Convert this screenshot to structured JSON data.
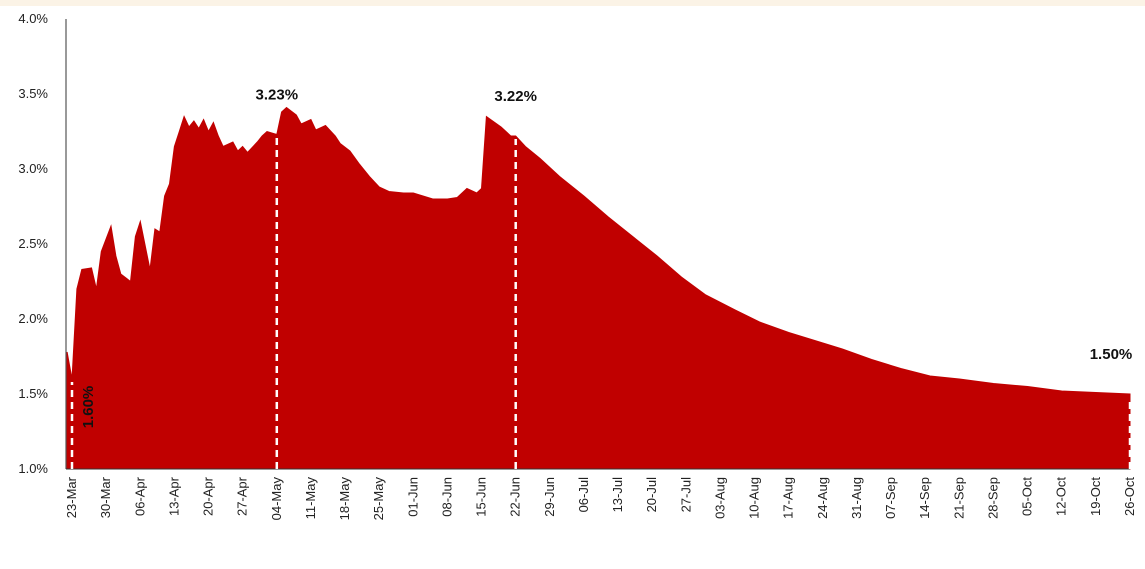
{
  "chart_data": {
    "type": "area",
    "y_tick_labels": [
      "1.0%",
      "1.5%",
      "2.0%",
      "2.5%",
      "3.0%",
      "3.5%",
      "4.0%"
    ],
    "y_ticks": [
      1.0,
      1.5,
      2.0,
      2.5,
      3.0,
      3.5,
      4.0
    ],
    "ylim": [
      1.0,
      4.0
    ],
    "x_tick_labels": [
      "23-Mar",
      "30-Mar",
      "06-Apr",
      "13-Apr",
      "20-Apr",
      "27-Apr",
      "04-May",
      "11-May",
      "18-May",
      "25-May",
      "01-Jun",
      "08-Jun",
      "15-Jun",
      "22-Jun",
      "29-Jun",
      "06-Jul",
      "13-Jul",
      "20-Jul",
      "27-Jul",
      "03-Aug",
      "10-Aug",
      "17-Aug",
      "24-Aug",
      "31-Aug",
      "07-Sep",
      "14-Sep",
      "21-Sep",
      "28-Sep",
      "05-Oct",
      "12-Oct",
      "19-Oct",
      "26-Oct"
    ],
    "x_start": "2020-03-23",
    "x_end": "2020-10-26",
    "series": [
      {
        "color": "#c00000",
        "points": [
          [
            "2020-03-22",
            1.78
          ],
          [
            "2020-03-23",
            1.6
          ],
          [
            "2020-03-24",
            2.2
          ],
          [
            "2020-03-25",
            2.33
          ],
          [
            "2020-03-27",
            2.34
          ],
          [
            "2020-03-28",
            2.2
          ],
          [
            "2020-03-29",
            2.45
          ],
          [
            "2020-03-31",
            2.62
          ],
          [
            "2020-04-01",
            2.42
          ],
          [
            "2020-04-02",
            2.3
          ],
          [
            "2020-04-04",
            2.25
          ],
          [
            "2020-04-05",
            2.55
          ],
          [
            "2020-04-06",
            2.65
          ],
          [
            "2020-04-08",
            2.33
          ],
          [
            "2020-04-09",
            2.6
          ],
          [
            "2020-04-10",
            2.58
          ],
          [
            "2020-04-11",
            2.82
          ],
          [
            "2020-04-12",
            2.9
          ],
          [
            "2020-04-13",
            3.15
          ],
          [
            "2020-04-14",
            3.25
          ],
          [
            "2020-04-15",
            3.35
          ],
          [
            "2020-04-16",
            3.28
          ],
          [
            "2020-04-17",
            3.32
          ],
          [
            "2020-04-18",
            3.27
          ],
          [
            "2020-04-19",
            3.33
          ],
          [
            "2020-04-20",
            3.25
          ],
          [
            "2020-04-21",
            3.31
          ],
          [
            "2020-04-22",
            3.22
          ],
          [
            "2020-04-23",
            3.15
          ],
          [
            "2020-04-25",
            3.18
          ],
          [
            "2020-04-26",
            3.12
          ],
          [
            "2020-04-27",
            3.15
          ],
          [
            "2020-04-28",
            3.11
          ],
          [
            "2020-04-30",
            3.18
          ],
          [
            "2020-05-01",
            3.22
          ],
          [
            "2020-05-02",
            3.25
          ],
          [
            "2020-05-04",
            3.23
          ],
          [
            "2020-05-05",
            3.38
          ],
          [
            "2020-05-06",
            3.41
          ],
          [
            "2020-05-08",
            3.36
          ],
          [
            "2020-05-09",
            3.3
          ],
          [
            "2020-05-11",
            3.33
          ],
          [
            "2020-05-12",
            3.26
          ],
          [
            "2020-05-14",
            3.29
          ],
          [
            "2020-05-16",
            3.22
          ],
          [
            "2020-05-17",
            3.17
          ],
          [
            "2020-05-19",
            3.12
          ],
          [
            "2020-05-21",
            3.03
          ],
          [
            "2020-05-23",
            2.95
          ],
          [
            "2020-05-25",
            2.88
          ],
          [
            "2020-05-27",
            2.85
          ],
          [
            "2020-05-30",
            2.84
          ],
          [
            "2020-06-01",
            2.84
          ],
          [
            "2020-06-03",
            2.82
          ],
          [
            "2020-06-05",
            2.8
          ],
          [
            "2020-06-08",
            2.8
          ],
          [
            "2020-06-10",
            2.81
          ],
          [
            "2020-06-12",
            2.87
          ],
          [
            "2020-06-14",
            2.84
          ],
          [
            "2020-06-15",
            2.87
          ],
          [
            "2020-06-16",
            3.35
          ],
          [
            "2020-06-19",
            3.28
          ],
          [
            "2020-06-21",
            3.22
          ],
          [
            "2020-06-22",
            3.22
          ],
          [
            "2020-06-24",
            3.15
          ],
          [
            "2020-06-27",
            3.07
          ],
          [
            "2020-07-01",
            2.95
          ],
          [
            "2020-07-06",
            2.82
          ],
          [
            "2020-07-11",
            2.68
          ],
          [
            "2020-07-16",
            2.55
          ],
          [
            "2020-07-21",
            2.42
          ],
          [
            "2020-07-26",
            2.28
          ],
          [
            "2020-07-31",
            2.16
          ],
          [
            "2020-08-06",
            2.06
          ],
          [
            "2020-08-11",
            1.98
          ],
          [
            "2020-08-17",
            1.91
          ],
          [
            "2020-08-22",
            1.86
          ],
          [
            "2020-08-28",
            1.8
          ],
          [
            "2020-09-03",
            1.73
          ],
          [
            "2020-09-09",
            1.67
          ],
          [
            "2020-09-15",
            1.62
          ],
          [
            "2020-09-21",
            1.6
          ],
          [
            "2020-09-28",
            1.57
          ],
          [
            "2020-10-05",
            1.55
          ],
          [
            "2020-10-12",
            1.52
          ],
          [
            "2020-10-19",
            1.51
          ],
          [
            "2020-10-26",
            1.5
          ]
        ]
      }
    ],
    "annotations": [
      {
        "label": "1.60%",
        "date": "2020-03-23",
        "value": 1.6,
        "vertical": true
      },
      {
        "label": "3.23%",
        "date": "2020-05-04",
        "value": 3.23,
        "vertical": false
      },
      {
        "label": "3.22%",
        "date": "2020-06-22",
        "value": 3.22,
        "vertical": false
      },
      {
        "label": "1.50%",
        "date": "2020-10-26",
        "value": 1.5,
        "vertical": false
      }
    ],
    "grid": false,
    "legend": "none"
  }
}
